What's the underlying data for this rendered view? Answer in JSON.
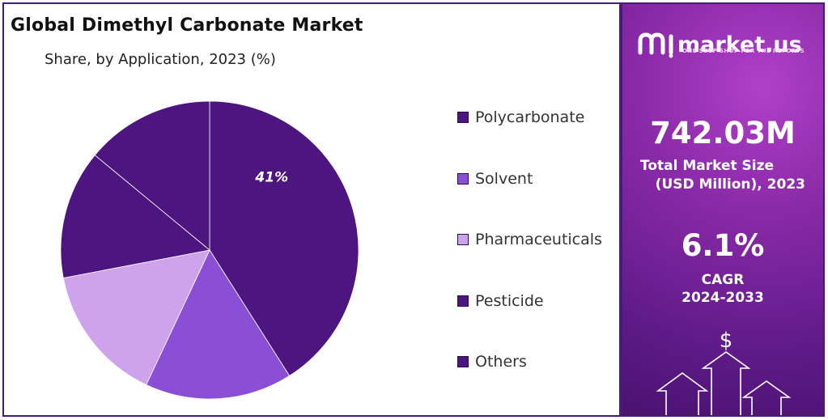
{
  "chart_data": {
    "type": "pie",
    "title": "Global Dimethyl Carbonate Market",
    "subtitle": "Share, by Application, 2023 (%)",
    "categories": [
      "Polycarbonate",
      "Solvent",
      "Pharmaceuticals",
      "Pesticide",
      "Others"
    ],
    "values": [
      41,
      16,
      15,
      14,
      14
    ],
    "data_labels": [
      "41%",
      "",
      "",
      "",
      ""
    ],
    "colors": [
      "#4d1580",
      "#8a4fd4",
      "#cfa3ec",
      "#4d1580",
      "#4d1580"
    ],
    "start_angle_deg": 0,
    "direction": "clockwise",
    "legend_position": "right"
  },
  "sidebar": {
    "brand_name": "market.us",
    "brand_tagline": "ONE STOP SHOP FOR THE REPORTS",
    "market_size_value": "742.03M",
    "market_size_label_line1": "Total Market Size",
    "market_size_label_line2": "(USD Million), 2023",
    "cagr_value": "6.1%",
    "cagr_label_line1": "CAGR",
    "cagr_label_line2": "2024-2033",
    "currency_symbol": "$",
    "colors": {
      "gradient_light": "#b040c8",
      "gradient_dark": "#4a1270"
    }
  }
}
